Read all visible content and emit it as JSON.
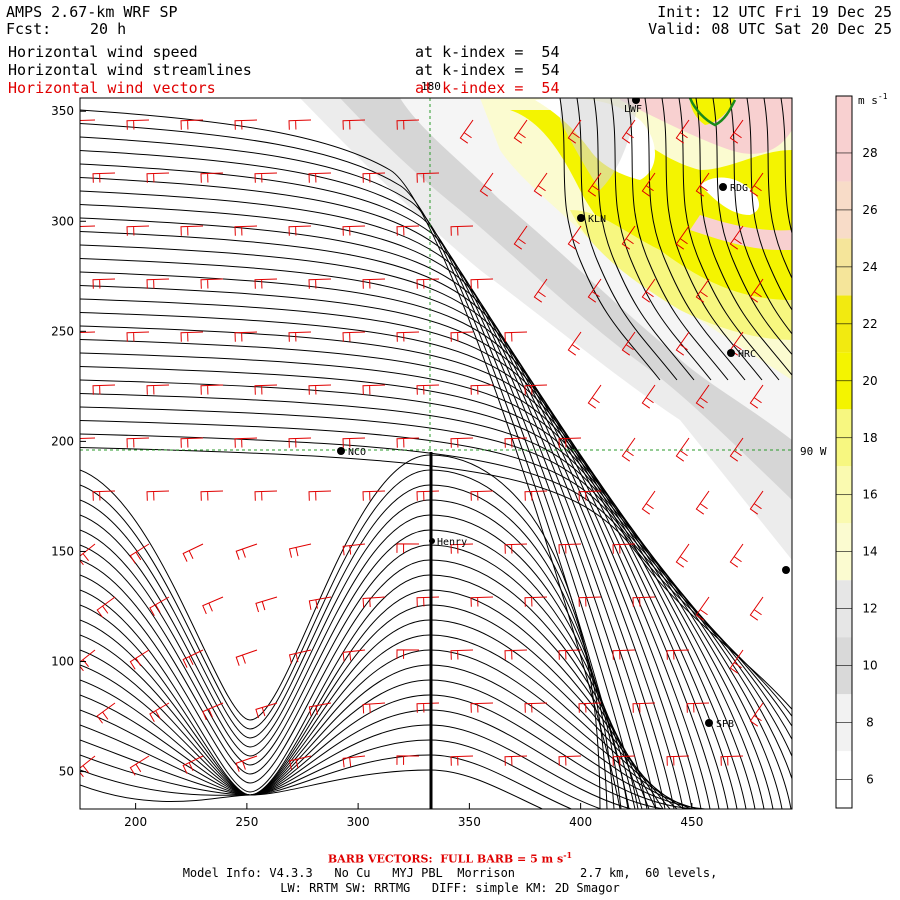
{
  "header": {
    "model": "AMPS 2.67-km WRF SP",
    "fcst_label": "Fcst:",
    "fcst_value": "20 h",
    "init": "Init: 12 UTC Fri 19 Dec 25",
    "valid": "Valid: 08 UTC Sat 20 Dec 25",
    "fields": [
      {
        "name": "Horizontal wind speed",
        "level": "at k-index =  54",
        "color": "#000000"
      },
      {
        "name": "Horizontal wind streamlines",
        "level": "at k-index =  54",
        "color": "#000000"
      },
      {
        "name": "Horizontal wind vectors",
        "level": "at k-index =  54",
        "color": "#e00000"
      }
    ]
  },
  "map": {
    "meridian_label": "180",
    "parallel_label": "90 W",
    "stations": [
      {
        "name": "LWF",
        "icon": "station-dot"
      },
      {
        "name": "RDG",
        "icon": "station-dot"
      },
      {
        "name": "KLN",
        "icon": "station-dot"
      },
      {
        "name": "HRC",
        "icon": "station-dot"
      },
      {
        "name": "NCO",
        "icon": "station-dot"
      },
      {
        "name": "Henry",
        "icon": "station-dot"
      },
      {
        "name": "SPB",
        "icon": "station-dot"
      },
      {
        "name": "",
        "icon": "station-dot"
      }
    ],
    "x_ticks": [
      "200",
      "250",
      "300",
      "350",
      "400",
      "450"
    ],
    "y_ticks": [
      "50",
      "100",
      "150",
      "200",
      "250",
      "300",
      "350"
    ],
    "x_range": [
      175,
      495
    ],
    "y_range": [
      33,
      356
    ]
  },
  "colorbar": {
    "units": "m s",
    "units_exp": "-1",
    "labels": [
      "6",
      "8",
      "10",
      "12",
      "14",
      "16",
      "18",
      "20",
      "22",
      "24",
      "26",
      "28"
    ],
    "bins": [
      {
        "from": 5,
        "to": 7,
        "color": "#ffffff"
      },
      {
        "from": 7,
        "to": 9,
        "color": "#f2f2f2"
      },
      {
        "from": 9,
        "to": 11,
        "color": "#d9d9d9"
      },
      {
        "from": 11,
        "to": 13,
        "color": "#e6e6e6"
      },
      {
        "from": 13,
        "to": 15,
        "color": "#fbfbd0"
      },
      {
        "from": 15,
        "to": 17,
        "color": "#fafab0"
      },
      {
        "from": 17,
        "to": 19,
        "color": "#f7f780"
      },
      {
        "from": 19,
        "to": 21,
        "color": "#f4f400"
      },
      {
        "from": 21,
        "to": 23,
        "color": "#f2ea10"
      },
      {
        "from": 23,
        "to": 25,
        "color": "#f5e59a"
      },
      {
        "from": 25,
        "to": 27,
        "color": "#f8dcc8"
      },
      {
        "from": 27,
        "to": 30,
        "color": "#f8d0d0"
      }
    ]
  },
  "footer": {
    "barb": "BARB VECTORS:  FULL BARB = 5 m s",
    "barb_exp": "-1",
    "line1": "Model Info: V4.3.3   No Cu   MYJ PBL  Morrison         2.7 km,  60 levels,",
    "line2": "LW: RRTM SW: RRTMG   DIFF: simple KM: 2D Smagor"
  },
  "colors": {
    "barb": "#e00000",
    "streamline": "#000000",
    "grid": "#2a9a2a",
    "coast": "#1a8a1a"
  }
}
